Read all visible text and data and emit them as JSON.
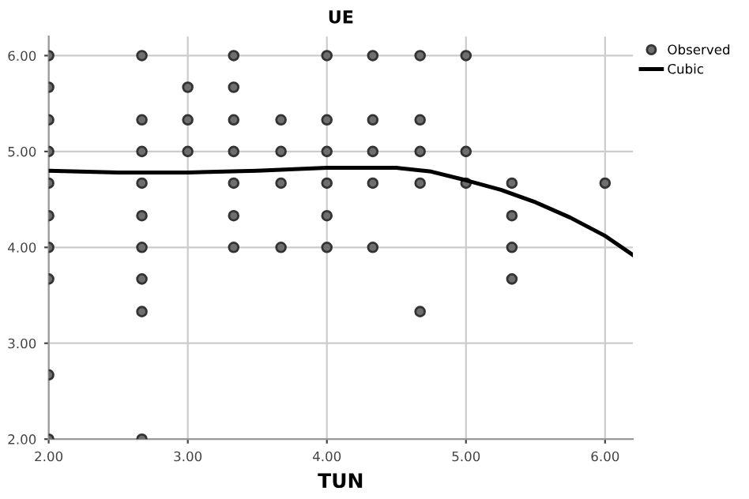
{
  "chart_data": {
    "type": "scatter",
    "title": "UE",
    "xlabel": "TUN",
    "series": [
      {
        "name": "Observed",
        "color": "#6e6e6e",
        "marker": "circle",
        "x": [
          2,
          2,
          2,
          2,
          2,
          2,
          2,
          2,
          2,
          2,
          2.67,
          2.67,
          2.67,
          2.67,
          2.67,
          2.67,
          2.67,
          2.67,
          2.67,
          3,
          3,
          3,
          3.33,
          3.33,
          3.33,
          3.33,
          3.33,
          3.33,
          3.33,
          3.67,
          3.67,
          3.67,
          3.67,
          4,
          4,
          4,
          4,
          4,
          4,
          4.33,
          4.33,
          4.33,
          4.33,
          4.33,
          4.67,
          4.67,
          4.67,
          4.67,
          4.67,
          5,
          5,
          5,
          5.33,
          5.33,
          5.33,
          5.33,
          6
        ],
        "values": [
          6,
          5.67,
          5.33,
          5,
          4.67,
          4.33,
          4,
          3.67,
          2.67,
          2,
          6,
          5.33,
          5,
          4.67,
          4.33,
          4,
          3.67,
          3.33,
          2,
          5.67,
          5.33,
          5,
          6,
          5.67,
          5.33,
          5,
          4.67,
          4.33,
          4,
          5.33,
          5,
          4.67,
          4,
          6,
          5.33,
          5,
          4.67,
          4.33,
          4,
          6,
          5.33,
          5,
          4.67,
          4,
          6,
          5.33,
          5,
          4.67,
          3.33,
          6,
          5,
          4.67,
          4.67,
          4.33,
          4,
          3.67,
          4.67
        ]
      },
      {
        "name": "Cubic",
        "type": "line",
        "color": "#000000",
        "marker": "none",
        "line_style": "solid",
        "x": [
          2,
          2.5,
          3,
          3.5,
          4,
          4.5,
          4.75,
          5,
          5.25,
          5.5,
          5.75,
          6,
          6.2
        ],
        "values": [
          4.8,
          4.78,
          4.78,
          4.8,
          4.83,
          4.83,
          4.79,
          4.7,
          4.6,
          4.47,
          4.31,
          4.12,
          3.92
        ]
      }
    ],
    "xlim": [
      2,
      6.2
    ],
    "ylim": [
      2,
      6.2
    ],
    "xticks": [
      {
        "value": 2,
        "label": "2.00"
      },
      {
        "value": 3,
        "label": "3.00"
      },
      {
        "value": 4,
        "label": "4.00"
      },
      {
        "value": 5,
        "label": "5.00"
      },
      {
        "value": 6,
        "label": "6.00"
      }
    ],
    "yticks": [
      {
        "value": 2,
        "label": "2.00"
      },
      {
        "value": 3,
        "label": "3.00"
      },
      {
        "value": 4,
        "label": "4.00"
      },
      {
        "value": 5,
        "label": "5.00"
      },
      {
        "value": 6,
        "label": "6.00"
      }
    ],
    "grid": true,
    "legend": "top right"
  }
}
